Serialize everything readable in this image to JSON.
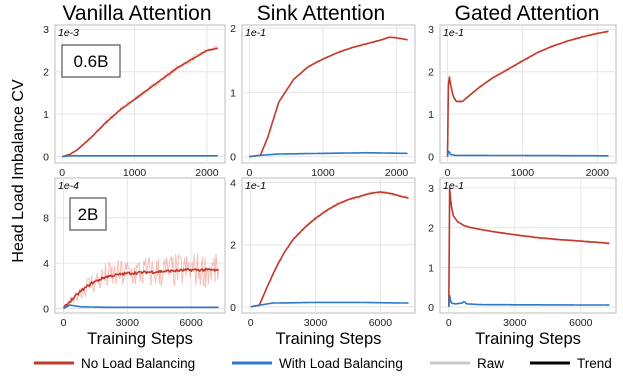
{
  "figure": {
    "ylabel": "Head Load Imbalance CV",
    "legend": [
      {
        "label": "No Load Balancing",
        "color": "#c0392b",
        "width": 3
      },
      {
        "label": "With Load Balancing",
        "color": "#2e78c7",
        "width": 3
      },
      {
        "label": "Raw",
        "color": "#c8c8c8",
        "width": 3
      },
      {
        "label": "Trend",
        "color": "#000000",
        "width": 3
      }
    ],
    "colors": {
      "no_lb": "#c0392b",
      "no_lb_raw": "#f2b0a6",
      "with_lb": "#2e78c7",
      "grid": "#e6e6e6",
      "frame": "#bdbdbd"
    }
  },
  "chart_data": [
    {
      "type": "line",
      "title": "Vanilla Attention",
      "model_label": "0.6B",
      "scale_label": "1e-3",
      "xlabel": "",
      "xticks": [
        0,
        1000,
        2000
      ],
      "xlim": [
        -100,
        2250
      ],
      "yticks": [
        0,
        1,
        2,
        3
      ],
      "ylim": [
        -0.15,
        3.1
      ],
      "noise": 0.06,
      "series": [
        {
          "name": "No Load Balancing",
          "x": [
            0,
            100,
            200,
            400,
            600,
            800,
            1000,
            1200,
            1400,
            1600,
            1800,
            2000,
            2150
          ],
          "y": [
            0,
            0.05,
            0.15,
            0.45,
            0.8,
            1.1,
            1.35,
            1.6,
            1.85,
            2.1,
            2.3,
            2.5,
            2.55
          ]
        },
        {
          "name": "With Load Balancing",
          "x": [
            0,
            100,
            2150
          ],
          "y": [
            0,
            0.02,
            0.02
          ]
        }
      ]
    },
    {
      "type": "line",
      "title": "Sink Attention",
      "model_label": "",
      "scale_label": "1e-1",
      "xlabel": "",
      "xticks": [
        0,
        1000,
        2000
      ],
      "xlim": [
        -100,
        2250
      ],
      "yticks": [
        0,
        1,
        2
      ],
      "ylim": [
        -0.1,
        2.05
      ],
      "noise": 0.015,
      "series": [
        {
          "name": "No Load Balancing",
          "x": [
            0,
            150,
            250,
            400,
            600,
            800,
            1000,
            1200,
            1400,
            1600,
            1800,
            1900,
            2000,
            2150
          ],
          "y": [
            0,
            0.02,
            0.3,
            0.85,
            1.2,
            1.4,
            1.52,
            1.62,
            1.7,
            1.76,
            1.82,
            1.86,
            1.85,
            1.82
          ]
        },
        {
          "name": "With Load Balancing",
          "x": [
            0,
            150,
            400,
            1000,
            1600,
            2150
          ],
          "y": [
            0,
            0.02,
            0.04,
            0.05,
            0.06,
            0.05
          ]
        }
      ]
    },
    {
      "type": "line",
      "title": "Gated Attention",
      "model_label": "",
      "scale_label": "1e-1",
      "xlabel": "",
      "xticks": [
        0,
        1000,
        2000
      ],
      "xlim": [
        -100,
        2250
      ],
      "yticks": [
        0,
        1,
        2,
        3
      ],
      "ylim": [
        -0.15,
        3.1
      ],
      "noise": 0.03,
      "series": [
        {
          "name": "No Load Balancing",
          "x": [
            0,
            15,
            40,
            80,
            120,
            200,
            300,
            400,
            600,
            800,
            1000,
            1200,
            1400,
            1600,
            1800,
            2000,
            2150
          ],
          "y": [
            0,
            2.0,
            1.7,
            1.4,
            1.3,
            1.3,
            1.45,
            1.6,
            1.85,
            2.05,
            2.25,
            2.45,
            2.6,
            2.72,
            2.82,
            2.9,
            2.95
          ]
        },
        {
          "name": "With Load Balancing",
          "x": [
            0,
            15,
            40,
            100,
            2150
          ],
          "y": [
            0,
            0.15,
            0.05,
            0.03,
            0.02
          ]
        }
      ]
    },
    {
      "type": "line",
      "title": "",
      "model_label": "2B",
      "scale_label": "1e-4",
      "xlabel": "Training Steps",
      "xticks": [
        0,
        3000,
        6000
      ],
      "xlim": [
        -400,
        7600
      ],
      "yticks": [
        0,
        4,
        8
      ],
      "ylim": [
        -0.4,
        11.5
      ],
      "noise": 1.6,
      "series": [
        {
          "name": "No Load Balancing",
          "x": [
            0,
            300,
            800,
            1300,
            2000,
            3000,
            4000,
            5000,
            6000,
            7000,
            7300
          ],
          "y": [
            0,
            0.6,
            1.5,
            2.2,
            2.8,
            3.1,
            3.2,
            3.3,
            3.4,
            3.4,
            3.3
          ]
        },
        {
          "name": "With Load Balancing",
          "x": [
            0,
            300,
            800,
            2000,
            7300
          ],
          "y": [
            0,
            0.3,
            0.15,
            0.1,
            0.1
          ]
        }
      ]
    },
    {
      "type": "line",
      "title": "",
      "model_label": "",
      "scale_label": "1e-1",
      "xlabel": "Training Steps",
      "xticks": [
        0,
        3000,
        6000
      ],
      "xlim": [
        -400,
        7600
      ],
      "yticks": [
        0,
        2,
        4
      ],
      "ylim": [
        -0.2,
        4.15
      ],
      "noise": 0.06,
      "series": [
        {
          "name": "No Load Balancing",
          "x": [
            0,
            400,
            800,
            1200,
            1600,
            2000,
            2500,
            3000,
            3500,
            4000,
            4500,
            5000,
            5500,
            6000,
            6500,
            7000,
            7300
          ],
          "y": [
            0,
            0.05,
            0.7,
            1.3,
            1.8,
            2.2,
            2.55,
            2.85,
            3.1,
            3.3,
            3.45,
            3.55,
            3.65,
            3.7,
            3.65,
            3.55,
            3.5
          ]
        },
        {
          "name": "With Load Balancing",
          "x": [
            0,
            400,
            1000,
            3000,
            5000,
            7300
          ],
          "y": [
            0,
            0.05,
            0.12,
            0.14,
            0.14,
            0.12
          ]
        }
      ]
    },
    {
      "type": "line",
      "title": "",
      "model_label": "",
      "scale_label": "1e-1",
      "xlabel": "Training Steps",
      "xticks": [
        0,
        3000,
        6000
      ],
      "xlim": [
        -400,
        7600
      ],
      "yticks": [
        0,
        1,
        2,
        3
      ],
      "ylim": [
        -0.15,
        3.25
      ],
      "noise": 0.025,
      "series": [
        {
          "name": "No Load Balancing",
          "x": [
            0,
            40,
            100,
            200,
            400,
            700,
            1000,
            1500,
            2000,
            3000,
            4000,
            5000,
            6000,
            7000,
            7300
          ],
          "y": [
            0,
            3.0,
            2.6,
            2.3,
            2.15,
            2.05,
            2.0,
            1.95,
            1.9,
            1.82,
            1.75,
            1.7,
            1.66,
            1.62,
            1.6
          ]
        },
        {
          "name": "With Load Balancing",
          "x": [
            0,
            40,
            100,
            300,
            600,
            700,
            800,
            1500,
            7300
          ],
          "y": [
            0,
            0.3,
            0.1,
            0.08,
            0.1,
            0.14,
            0.08,
            0.06,
            0.05
          ]
        }
      ]
    }
  ]
}
